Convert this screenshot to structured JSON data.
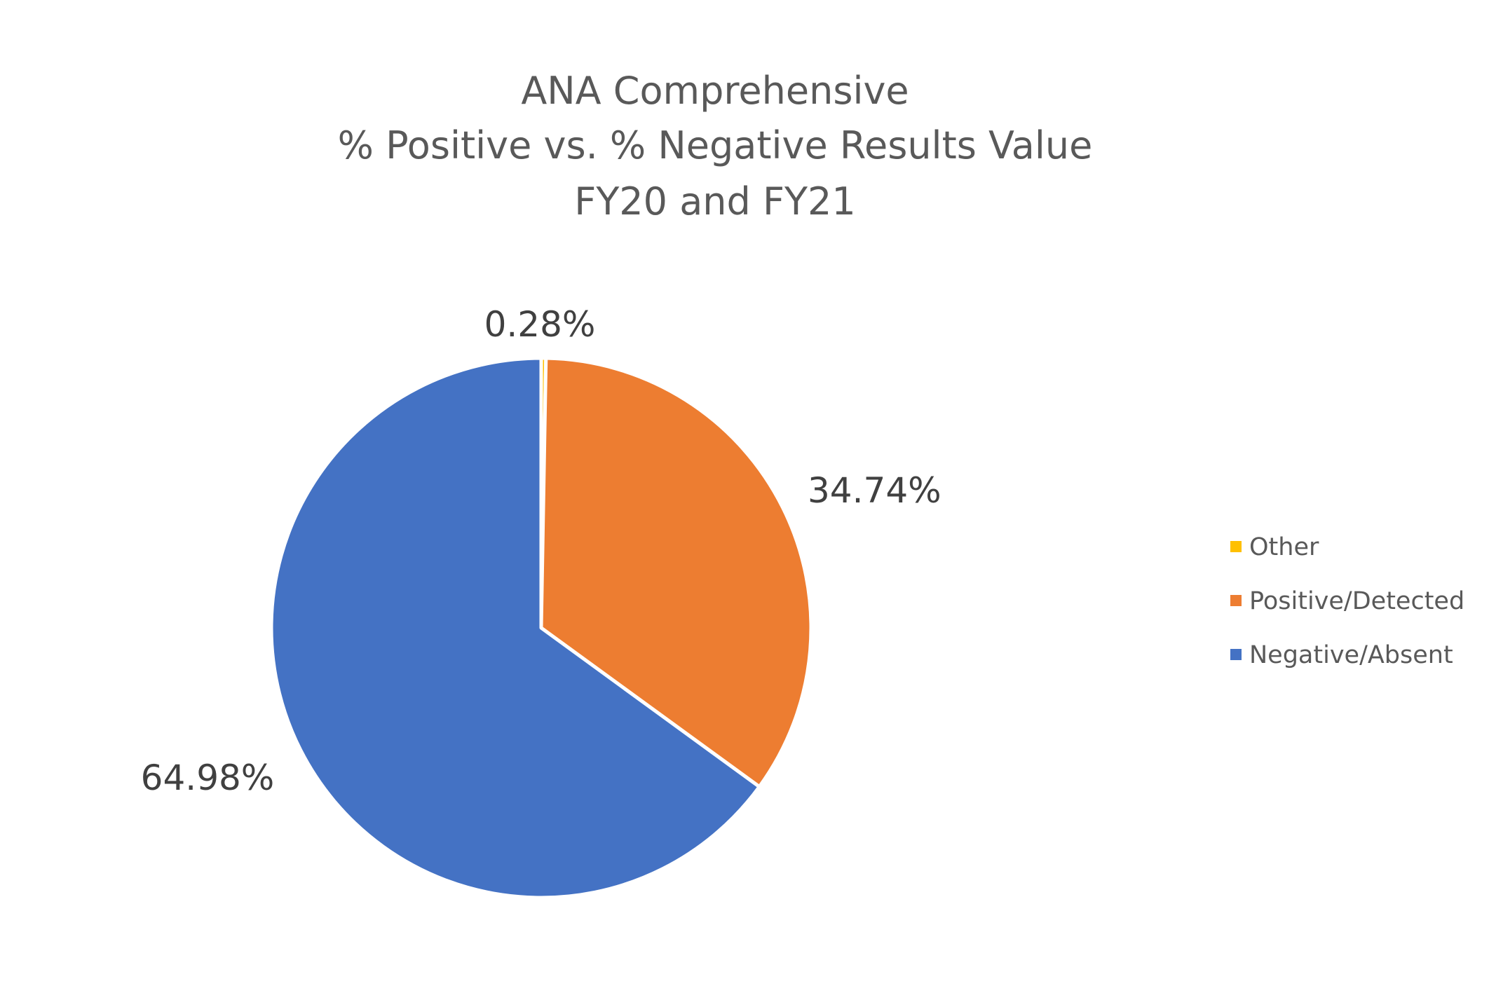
{
  "chart_data": {
    "type": "pie",
    "title": [
      "ANA Comprehensive",
      "% Positive vs. % Negative Results Value",
      "FY20 and FY21"
    ],
    "slices": [
      {
        "name": "Other",
        "value": 0.28,
        "label": "0.28%",
        "color": "#FFC000"
      },
      {
        "name": "Positive/Detected",
        "value": 34.74,
        "label": "34.74%",
        "color": "#ED7D31"
      },
      {
        "name": "Negative/Absent",
        "value": 64.98,
        "label": "64.98%",
        "color": "#4472C4"
      }
    ],
    "start_angle": "12 o'clock",
    "direction": "clockwise",
    "legend": {
      "position": "right",
      "entries": [
        "Other",
        "Positive/Detected",
        "Negative/Absent"
      ]
    }
  }
}
